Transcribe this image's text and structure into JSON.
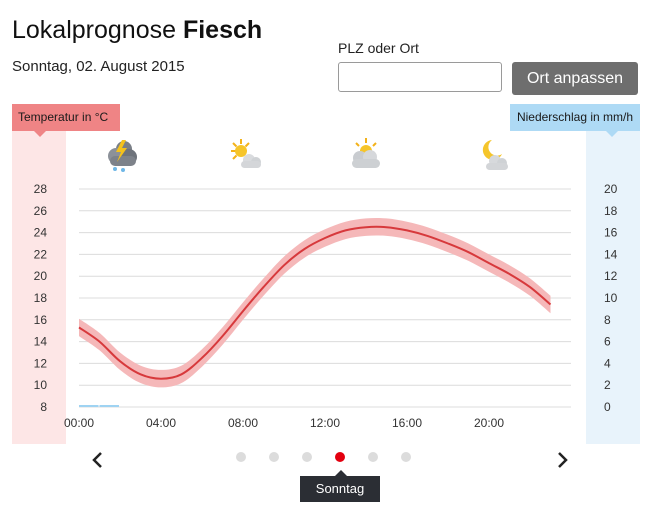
{
  "header": {
    "title_prefix": "Lokalprognose",
    "title_location": "Fiesch",
    "date": "Sonntag, 02. August 2015"
  },
  "search": {
    "label": "PLZ oder Ort",
    "value": "",
    "placeholder": "",
    "button_label": "Ort anpassen"
  },
  "labels": {
    "temp_axis_tag": "Temperatur in °C",
    "precip_axis_tag": "Niederschlag in mm/h"
  },
  "weather_icons": [
    {
      "time": "01:00",
      "icon": "thunderstorm-cloud-icon"
    },
    {
      "time": "07:00",
      "icon": "sun-cloud-icon"
    },
    {
      "time": "13:00",
      "icon": "sun-cloud-icon"
    },
    {
      "time": "19:00",
      "icon": "moon-cloud-icon"
    }
  ],
  "chart_data": {
    "type": "line",
    "x_ticks": [
      "00:00",
      "04:00",
      "08:00",
      "12:00",
      "16:00",
      "20:00"
    ],
    "y_left": {
      "label": "Temperatur in °C",
      "ticks": [
        8,
        10,
        12,
        14,
        16,
        18,
        20,
        22,
        24,
        26,
        28
      ],
      "range": [
        8,
        28
      ]
    },
    "y_right": {
      "label": "Niederschlag in mm/h",
      "ticks": [
        0,
        2,
        4,
        6,
        8,
        10,
        12,
        14,
        16,
        18,
        20
      ],
      "range": [
        0,
        20
      ]
    },
    "grid": true,
    "series": [
      {
        "kind": "temperature",
        "hours": [
          0,
          1,
          2,
          3,
          4,
          5,
          6,
          7,
          8,
          9,
          10,
          11,
          12,
          13,
          14,
          15,
          16,
          17,
          18,
          19,
          20,
          21,
          22,
          23
        ],
        "values": [
          15.3,
          14.0,
          12.2,
          11.0,
          10.6,
          11.0,
          12.5,
          14.5,
          16.8,
          19.0,
          21.0,
          22.5,
          23.5,
          24.2,
          24.5,
          24.5,
          24.2,
          23.7,
          23.0,
          22.2,
          21.2,
          20.2,
          19.0,
          17.4
        ],
        "uncertainty": 0.8
      },
      {
        "kind": "precipitation",
        "hours": [
          0,
          1
        ],
        "values": [
          0.1,
          0.1
        ]
      }
    ],
    "colors": {
      "temperature_line": "#d7393c",
      "temperature_band": "#f5b8b9",
      "precip": "#9fd3f2"
    }
  },
  "pager": {
    "day_label": "Sonntag",
    "dots": 6,
    "active_index": 3
  }
}
